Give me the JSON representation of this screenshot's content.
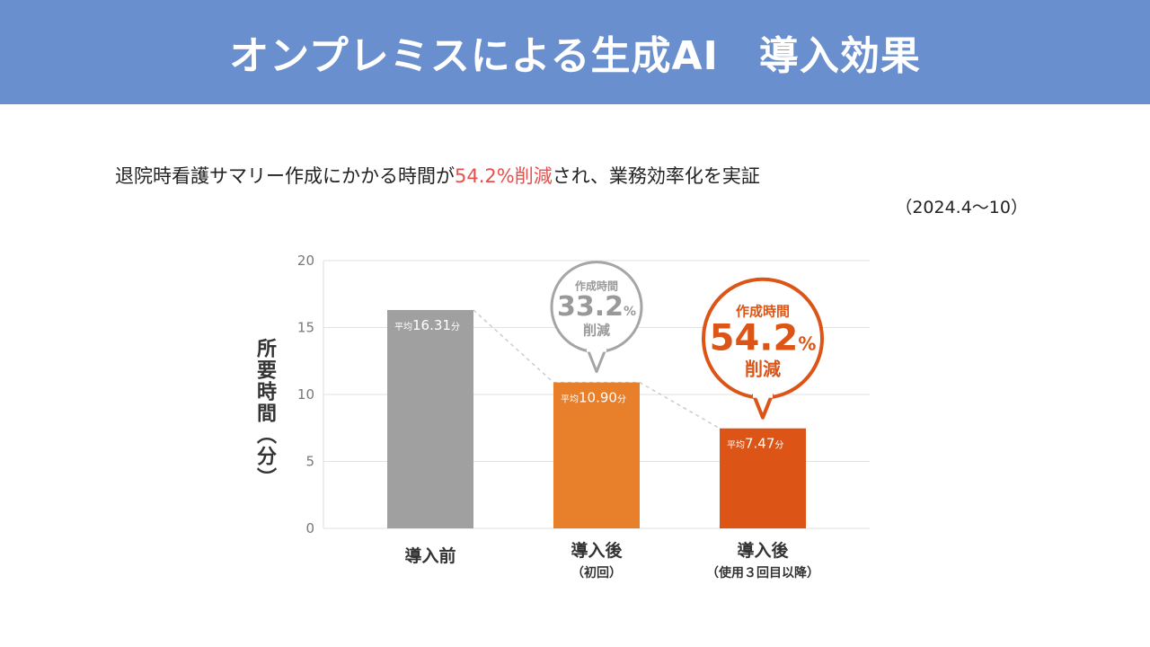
{
  "header": {
    "title": "オンプレミスによる生成AI　導入効果"
  },
  "summary": {
    "text_before": "退院時看護サマリー作成にかかる時間が",
    "highlight": "54.2%削減",
    "text_after": "され、業務効率化を実証",
    "period": "（2024.4～10）"
  },
  "colors": {
    "header_bg": "#6a8fce",
    "highlight": "#e8504e",
    "bar_before": "#a0a0a0",
    "bar_after_first": "#e87f2a",
    "bar_after_third": "#dc5517"
  },
  "chart_data": {
    "type": "bar",
    "ylabel": "所要時間（分）",
    "ylim": [
      0,
      20
    ],
    "yticks": [
      0,
      5,
      10,
      15,
      20
    ],
    "grid": true,
    "categories": [
      {
        "label": "導入前",
        "sublabel": ""
      },
      {
        "label": "導入後",
        "sublabel": "（初回）"
      },
      {
        "label": "導入後",
        "sublabel": "（使用３回目以降）"
      }
    ],
    "values": [
      16.31,
      10.9,
      7.47
    ],
    "value_labels": [
      {
        "prefix": "平均",
        "number": "16.31",
        "unit": "分"
      },
      {
        "prefix": "平均",
        "number": "10.90",
        "unit": "分"
      },
      {
        "prefix": "平均",
        "number": "7.47",
        "unit": "分"
      }
    ],
    "callouts": [
      {
        "bar_index": 1,
        "top": "作成時間",
        "value": "33.2",
        "unit": "%",
        "bottom": "削減",
        "color": "#a5a5a5"
      },
      {
        "bar_index": 2,
        "top": "作成時間",
        "value": "54.2",
        "unit": "%",
        "bottom": "削減",
        "color": "#dc5517"
      }
    ]
  }
}
